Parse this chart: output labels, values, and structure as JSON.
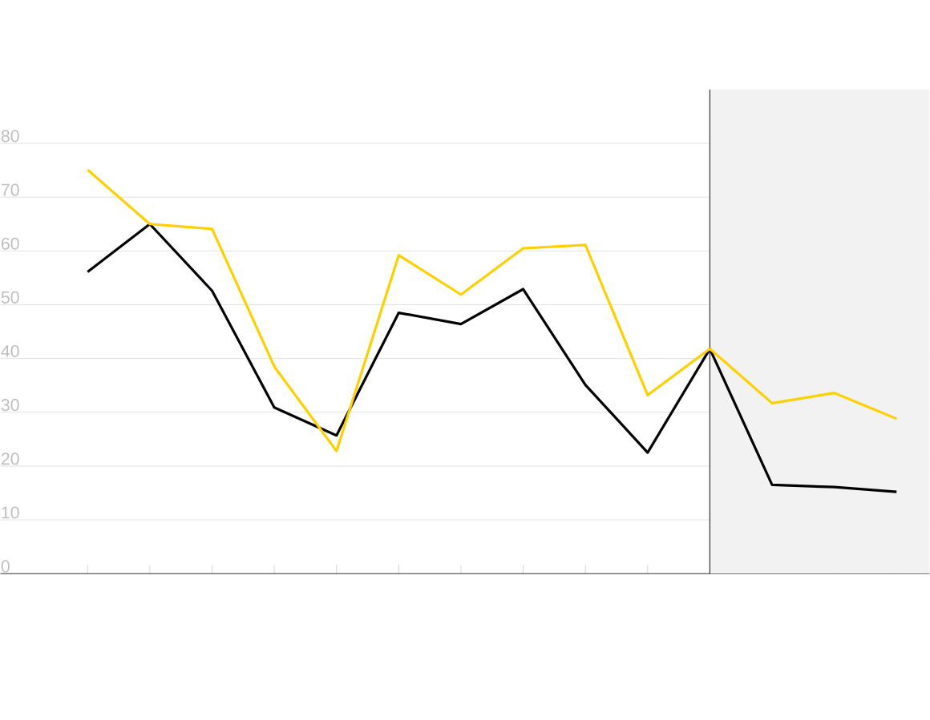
{
  "chart_data": {
    "type": "line",
    "categories": [
      null,
      null,
      null,
      null,
      null,
      null,
      null,
      null,
      null,
      null,
      null,
      null,
      null,
      null
    ],
    "series": [
      {
        "color": "#000000",
        "values": [
          56.1,
          65.0,
          52.6,
          30.9,
          25.7,
          48.5,
          46.4,
          52.9,
          35.1,
          22.5,
          41.8,
          16.5,
          16.1,
          15.2
        ]
      },
      {
        "color": "#ffd000",
        "values": [
          75.1,
          65.0,
          64.1,
          38.5,
          22.8,
          59.2,
          51.9,
          60.5,
          61.1,
          33.2,
          41.8,
          31.7,
          33.6,
          28.8
        ]
      }
    ],
    "ylim": [
      0,
      90
    ],
    "yticks": [
      0,
      10,
      20,
      30,
      40,
      50,
      60,
      70,
      80
    ],
    "grid": "y",
    "tick_labels": "y",
    "marker": "none",
    "line_style": "solid"
  }
}
